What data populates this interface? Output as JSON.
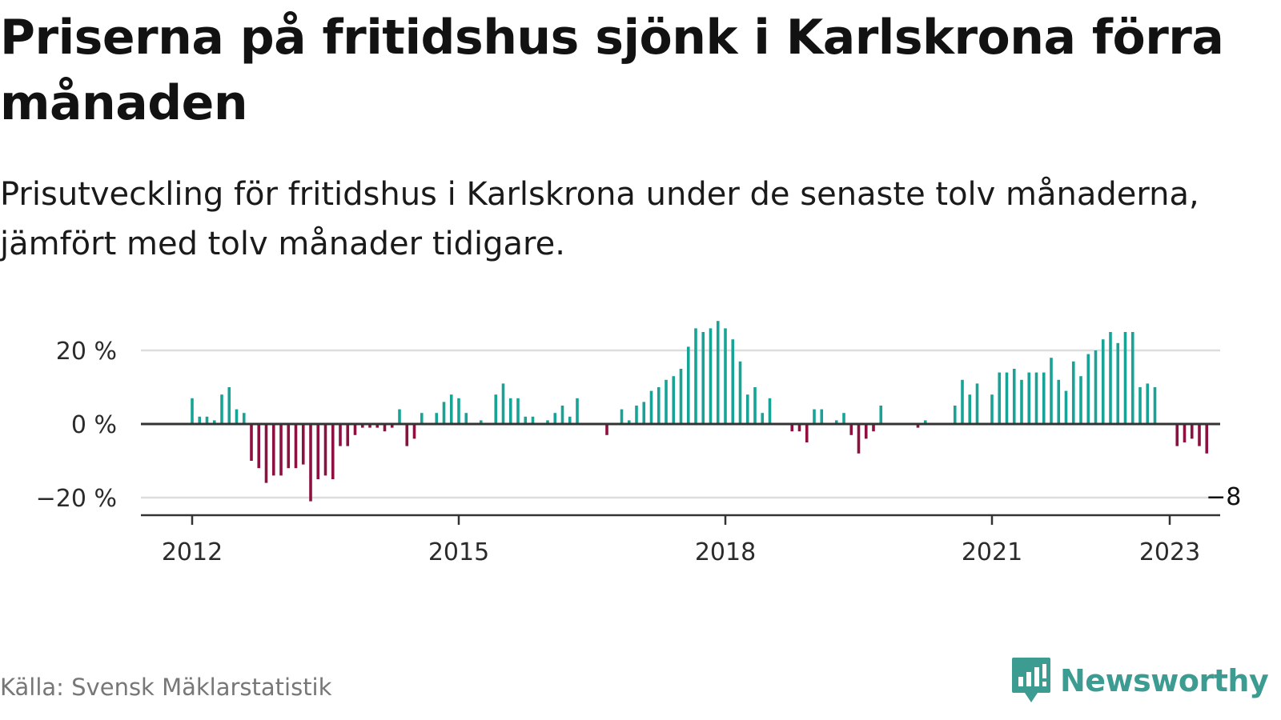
{
  "title": "Priserna på fritidshus sjönk i Karlskrona förra månaden",
  "subtitle": "Prisutveckling för fritidshus i Karlskrona under de senaste tolv månaderna, jämfört med tolv månader tidigare.",
  "source": "Källa: Svensk Mäklarstatistik",
  "brand": "Newsworthy",
  "colors": {
    "positive": "#17a497",
    "negative": "#8c1140",
    "grid": "#dddddd",
    "axis": "#333333",
    "brand": "#3d9c92"
  },
  "chart_data": {
    "type": "bar",
    "title": "Priserna på fritidshus sjönk i Karlskrona förra månaden",
    "subtitle": "Prisutveckling för fritidshus i Karlskrona under de senaste tolv månaderna, jämfört med tolv månader tidigare.",
    "xlabel": "",
    "ylabel": "",
    "start": "2012-01",
    "ylim": [
      -25,
      30
    ],
    "y_ticks": [
      20,
      0,
      -20
    ],
    "y_tick_labels": [
      "20 %",
      "0 %",
      "−20 %"
    ],
    "x_tick_labels": [
      "2012",
      "2015",
      "2018",
      "2021",
      "2023"
    ],
    "x_tick_dates": [
      "2012-01",
      "2015-01",
      "2018-01",
      "2021-01",
      "2023-01"
    ],
    "grid": true,
    "end_label": "−8 %",
    "values": [
      7,
      2,
      2,
      1,
      8,
      10,
      4,
      3,
      -10,
      -12,
      -16,
      -14,
      -14,
      -12,
      -12,
      -11,
      -21,
      -15,
      -14,
      -15,
      -6,
      -6,
      -3,
      -1,
      -1,
      -1,
      -2,
      -1,
      4,
      -6,
      -4,
      3,
      0,
      3,
      6,
      8,
      7,
      3,
      0,
      1,
      0,
      8,
      11,
      7,
      7,
      2,
      2,
      0,
      1,
      3,
      5,
      2,
      7,
      0,
      0,
      0,
      -3,
      0,
      4,
      1,
      5,
      6,
      9,
      10,
      12,
      13,
      15,
      21,
      26,
      25,
      26,
      28,
      26,
      23,
      17,
      8,
      10,
      3,
      7,
      0,
      0,
      -2,
      -2,
      -5,
      4,
      4,
      0,
      1,
      3,
      -3,
      -8,
      -4,
      -2,
      5,
      0,
      0,
      0,
      0,
      -1,
      1,
      0,
      0,
      0,
      5,
      12,
      8,
      11,
      0,
      8,
      14,
      14,
      15,
      12,
      14,
      14,
      14,
      18,
      12,
      9,
      17,
      13,
      19,
      20,
      23,
      25,
      22,
      25,
      25,
      10,
      11,
      10,
      0,
      0,
      -6,
      -5,
      -4,
      -6,
      -8
    ]
  }
}
